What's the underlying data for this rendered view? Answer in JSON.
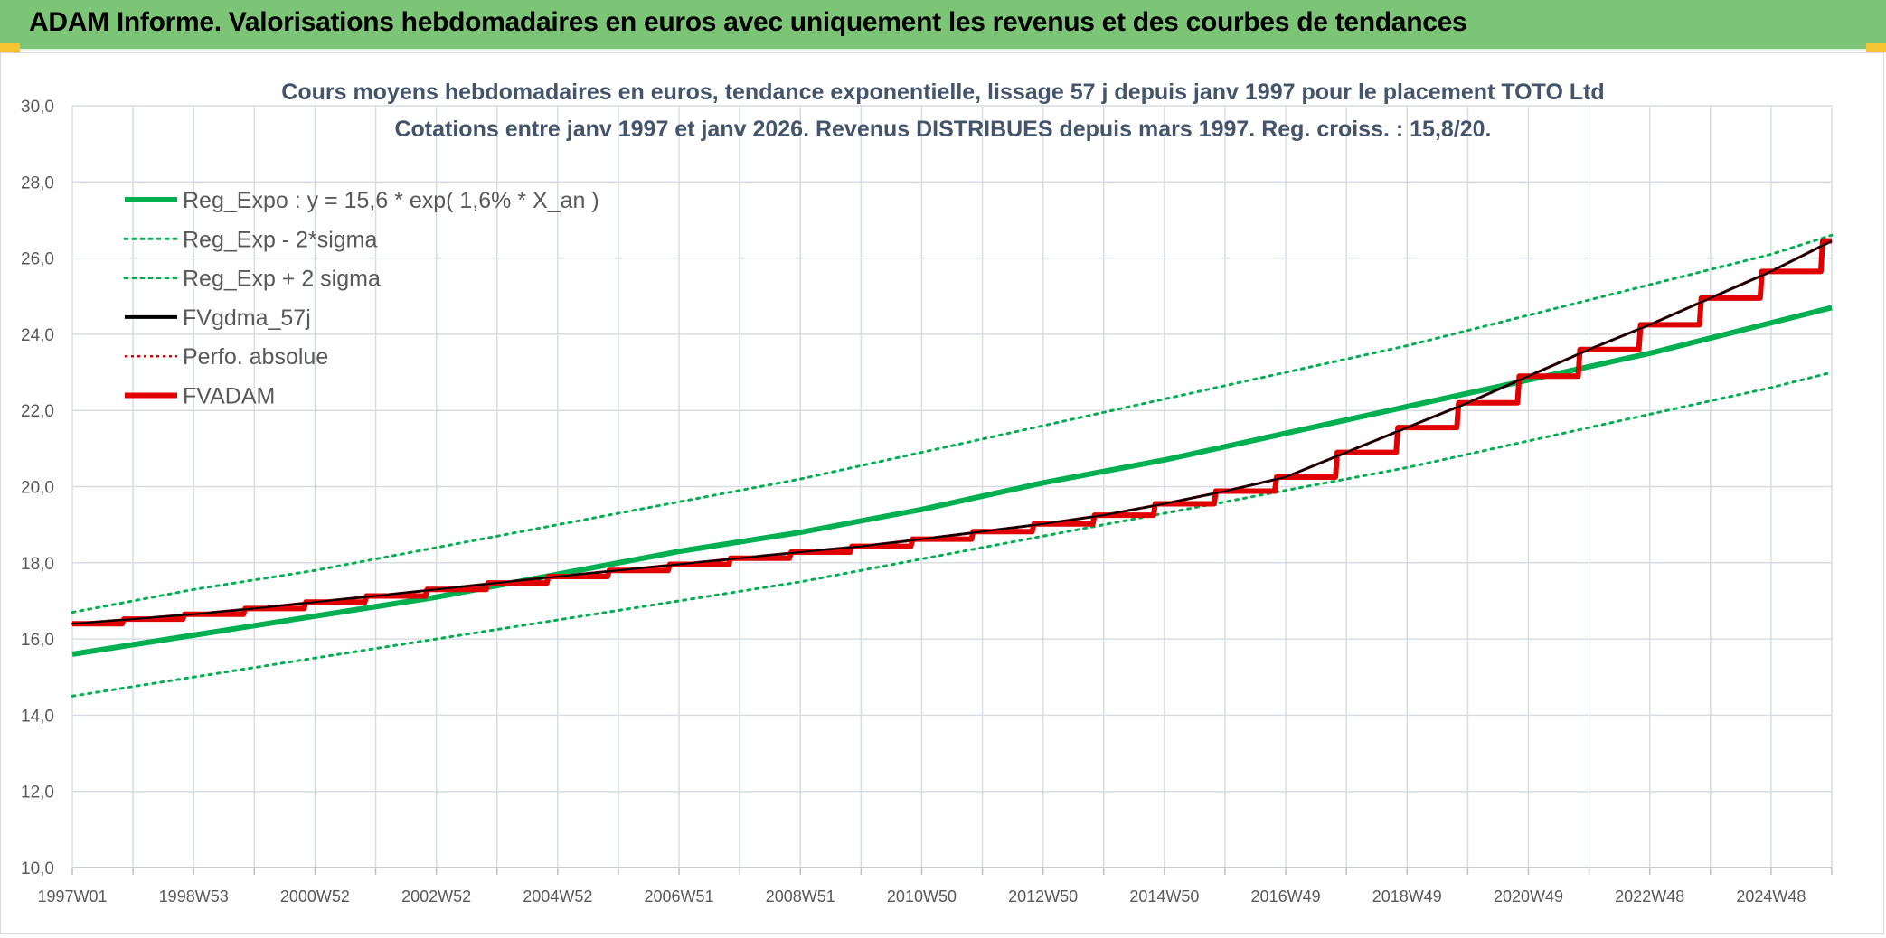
{
  "banner": {
    "title": "ADAM Informe. Valorisations hebdomadaires en euros avec uniquement les revenus et des courbes de tendances"
  },
  "colors": {
    "banner_bg": "#7cc576",
    "reg_expo": "#00b050",
    "fvgdma": "#000000",
    "perfo": "#e00000",
    "fvadam": "#e00000",
    "grid": "#d9dde3",
    "title": "#44546a"
  },
  "chart_data": {
    "type": "line",
    "title_lines": [
      "Cours moyens hebdomadaires en euros, tendance exponentielle, lissage 57 j depuis janv 1997 pour le placement TOTO Ltd",
      "Cotations entre janv 1997 et janv 2026. Revenus DISTRIBUES depuis mars 1997. Reg. croiss. : 15,8/20."
    ],
    "xlabel": "",
    "ylabel": "",
    "ylim": [
      10,
      30
    ],
    "y_ticks": [
      "10,0",
      "12,0",
      "14,0",
      "16,0",
      "18,0",
      "20,0",
      "22,0",
      "24,0",
      "26,0",
      "28,0",
      "30,0"
    ],
    "x_range_years": [
      1997.0,
      2026.0
    ],
    "x_ticks": [
      {
        "label": "1997W01",
        "year": 1997.0
      },
      {
        "label": "1998W53",
        "year": 1999.0
      },
      {
        "label": "2000W52",
        "year": 2001.0
      },
      {
        "label": "2002W52",
        "year": 2003.0
      },
      {
        "label": "2004W52",
        "year": 2005.0
      },
      {
        "label": "2006W51",
        "year": 2007.0
      },
      {
        "label": "2008W51",
        "year": 2009.0
      },
      {
        "label": "2010W50",
        "year": 2011.0
      },
      {
        "label": "2012W50",
        "year": 2013.0
      },
      {
        "label": "2014W50",
        "year": 2015.0
      },
      {
        "label": "2016W49",
        "year": 2017.0
      },
      {
        "label": "2018W49",
        "year": 2019.0
      },
      {
        "label": "2020W49",
        "year": 2021.0
      },
      {
        "label": "2022W48",
        "year": 2023.0
      },
      {
        "label": "2024W48",
        "year": 2025.0
      }
    ],
    "legend_position": "top-left",
    "grid": true,
    "series": [
      {
        "name": "Reg_Expo : y = 15,6 * exp( 1,6% *  X_an )",
        "style": "solid-thick",
        "color": "#00b050",
        "x": [
          1997,
          1999,
          2001,
          2003,
          2005,
          2007,
          2009,
          2011,
          2013,
          2015,
          2017,
          2019,
          2021,
          2023,
          2025,
          2026
        ],
        "y": [
          15.6,
          16.1,
          16.6,
          17.1,
          17.7,
          18.3,
          18.8,
          19.4,
          20.1,
          20.7,
          21.4,
          22.1,
          22.8,
          23.5,
          24.3,
          24.7
        ]
      },
      {
        "name": "Reg_Exp - 2*sigma",
        "style": "dotted",
        "color": "#00b050",
        "x": [
          1997,
          1999,
          2001,
          2003,
          2005,
          2007,
          2009,
          2011,
          2013,
          2015,
          2017,
          2019,
          2021,
          2023,
          2025,
          2026
        ],
        "y": [
          14.5,
          15.0,
          15.5,
          16.0,
          16.5,
          17.0,
          17.5,
          18.1,
          18.7,
          19.3,
          19.9,
          20.5,
          21.2,
          21.9,
          22.6,
          23.0
        ]
      },
      {
        "name": "Reg_Exp + 2 sigma",
        "style": "dotted",
        "color": "#00b050",
        "x": [
          1997,
          1999,
          2001,
          2003,
          2005,
          2007,
          2009,
          2011,
          2013,
          2015,
          2017,
          2019,
          2021,
          2023,
          2025,
          2026
        ],
        "y": [
          16.7,
          17.3,
          17.8,
          18.4,
          19.0,
          19.6,
          20.2,
          20.9,
          21.6,
          22.3,
          23.0,
          23.7,
          24.5,
          25.3,
          26.1,
          26.6
        ]
      },
      {
        "name": "FVgdma_57j",
        "style": "solid",
        "color": "#000000",
        "x": [
          1997.0,
          1998.0,
          1999.0,
          2000.0,
          2001.0,
          2002.0,
          2003.0,
          2004.0,
          2005.0,
          2006.0,
          2007.0,
          2008.0,
          2009.0,
          2010.0,
          2011.0,
          2012.0,
          2013.0,
          2014.0,
          2015.0,
          2016.0,
          2017.0,
          2018.0,
          2019.0,
          2020.0,
          2021.0,
          2022.0,
          2023.0,
          2024.0,
          2025.0,
          2026.0
        ],
        "y": [
          16.4,
          16.52,
          16.65,
          16.8,
          16.97,
          17.13,
          17.3,
          17.47,
          17.64,
          17.8,
          17.96,
          18.12,
          18.28,
          18.43,
          18.62,
          18.82,
          19.02,
          19.25,
          19.55,
          19.88,
          20.25,
          20.9,
          21.55,
          22.2,
          22.9,
          23.6,
          24.25,
          24.95,
          25.65,
          26.45
        ]
      },
      {
        "name": "Perfo. absolue",
        "style": "dotted",
        "color": "#e00000",
        "x": [
          1997.0,
          1998.0,
          1999.0,
          2000.0,
          2001.0,
          2002.0,
          2003.0,
          2004.0,
          2005.0,
          2006.0,
          2007.0,
          2008.0,
          2009.0,
          2010.0,
          2011.0,
          2012.0,
          2013.0,
          2014.0,
          2015.0,
          2016.0,
          2017.0,
          2018.0,
          2019.0,
          2020.0,
          2021.0,
          2022.0,
          2023.0,
          2024.0,
          2025.0,
          2026.0
        ],
        "y": [
          16.4,
          16.52,
          16.65,
          16.8,
          16.97,
          17.13,
          17.3,
          17.47,
          17.64,
          17.8,
          17.96,
          18.12,
          18.28,
          18.43,
          18.62,
          18.82,
          19.02,
          19.25,
          19.55,
          19.88,
          20.25,
          20.9,
          21.55,
          22.2,
          22.9,
          23.6,
          24.25,
          24.95,
          25.65,
          26.45
        ]
      },
      {
        "name": "FVADAM",
        "style": "staircase",
        "color": "#e00000",
        "x": [
          1997.0,
          1998.0,
          1999.0,
          2000.0,
          2001.0,
          2002.0,
          2003.0,
          2004.0,
          2005.0,
          2006.0,
          2007.0,
          2008.0,
          2009.0,
          2010.0,
          2011.0,
          2012.0,
          2013.0,
          2014.0,
          2015.0,
          2016.0,
          2017.0,
          2018.0,
          2019.0,
          2020.0,
          2021.0,
          2022.0,
          2023.0,
          2024.0,
          2025.0,
          2026.0
        ],
        "y": [
          16.4,
          16.52,
          16.65,
          16.8,
          16.97,
          17.13,
          17.3,
          17.47,
          17.64,
          17.8,
          17.96,
          18.12,
          18.28,
          18.43,
          18.62,
          18.82,
          19.02,
          19.25,
          19.55,
          19.88,
          20.25,
          20.9,
          21.55,
          22.2,
          22.9,
          23.6,
          24.25,
          24.95,
          25.65,
          26.45
        ]
      }
    ]
  }
}
